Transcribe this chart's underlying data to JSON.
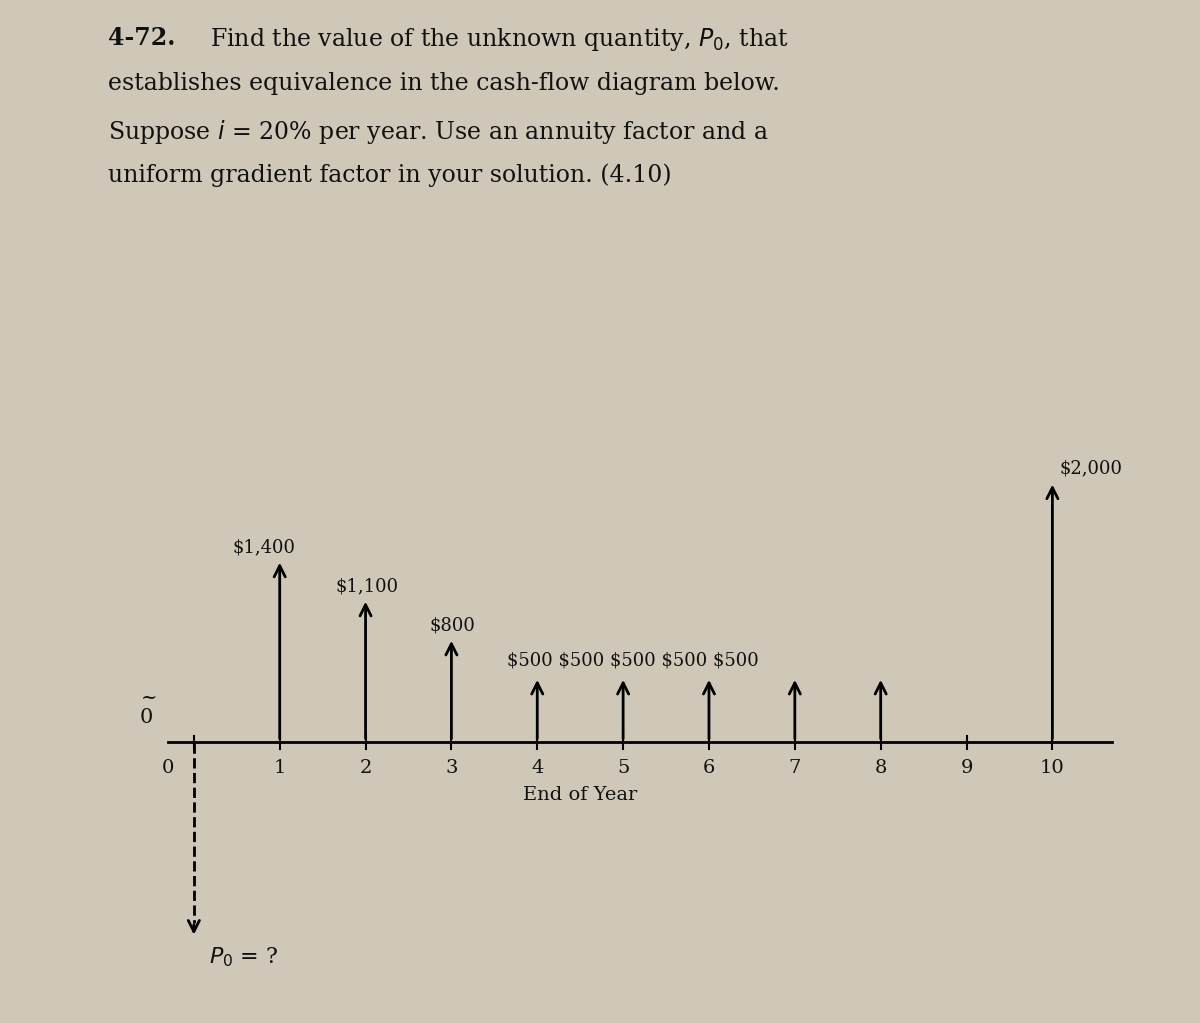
{
  "background_color": "#cfc8b8",
  "cash_flows_up": {
    "1": 1400,
    "2": 1100,
    "3": 800,
    "4": 500,
    "5": 500,
    "6": 500,
    "7": 500,
    "8": 500,
    "10": 2000
  },
  "P0_depth": -1500,
  "xlabel": "End of Year",
  "x_ticks": [
    0,
    1,
    2,
    3,
    4,
    5,
    6,
    7,
    8,
    9,
    10
  ],
  "arrow_color": "#000000",
  "text_color": "#111111",
  "font_size_title": 17,
  "font_size_labels": 14,
  "font_size_ticks": 14,
  "font_size_annotations": 13,
  "single_labels": {
    "1": "$1,400",
    "2": "$1,100",
    "3": "$800",
    "10": "$2,000"
  },
  "group_label_500": "$500 $500 $500 $500 $500",
  "P0_label_main": "P",
  "P0_label_sub": "0",
  "P0_label_rest": " = ?",
  "zero_tilde_label": "0",
  "ymin": -2000,
  "ymax": 2400,
  "xmin": -1.0,
  "xmax": 11.3
}
